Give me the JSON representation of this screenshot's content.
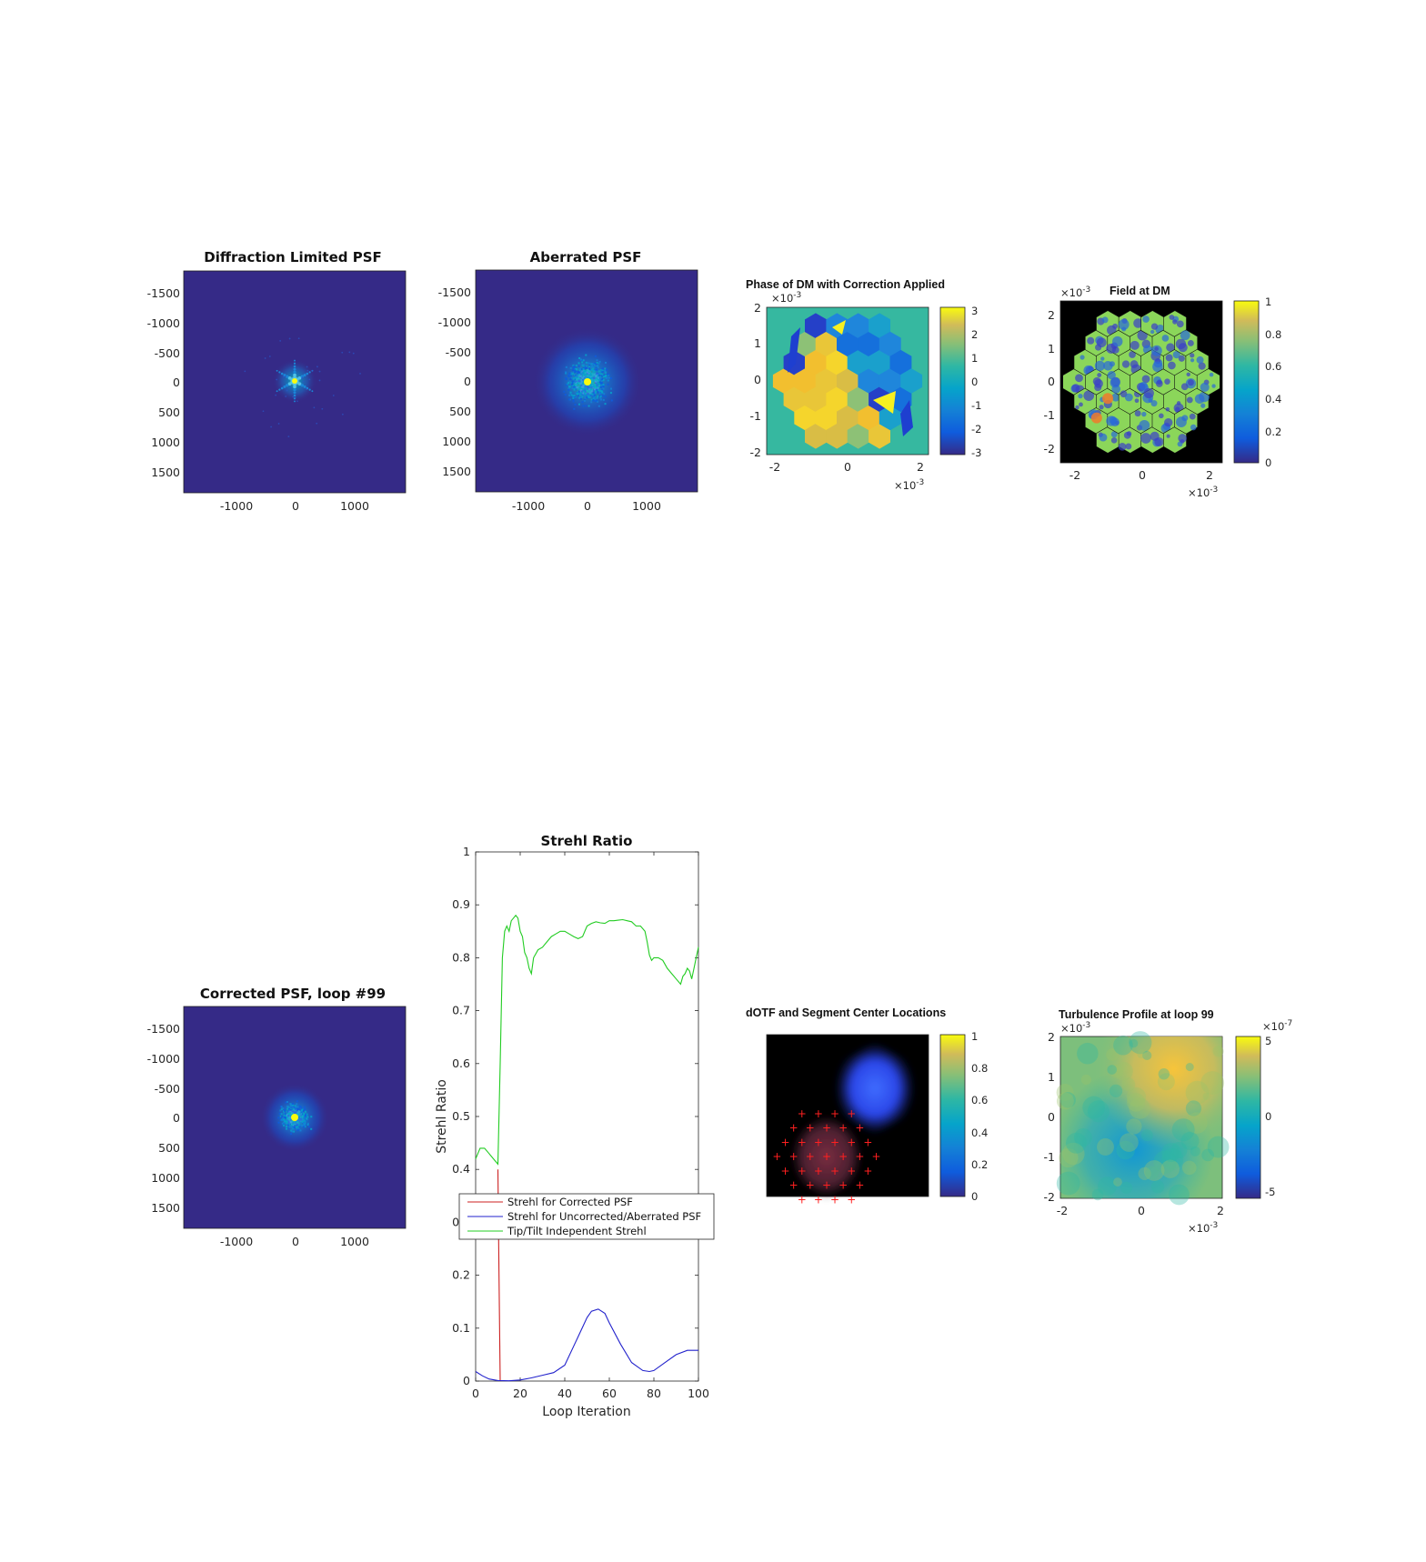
{
  "figure": {
    "background": "#ffffff"
  },
  "chart_data": [
    {
      "type": "heatmap",
      "id": "diffraction",
      "title": "Diffraction Limited PSF",
      "xticks": [
        "-1000",
        "0",
        "1000"
      ],
      "yticks": [
        "-1500",
        "-1000",
        "-500",
        "0",
        "500",
        "1000",
        "1500"
      ],
      "background_color": "#352a87",
      "peak_color": "#f9fb0e",
      "pattern": "hexagonal-star"
    },
    {
      "type": "heatmap",
      "id": "aberrated",
      "title": "Aberrated PSF",
      "xticks": [
        "-1000",
        "0",
        "1000"
      ],
      "yticks": [
        "-1500",
        "-1000",
        "-500",
        "0",
        "500",
        "1000",
        "1500"
      ],
      "background_color": "#352a87",
      "pattern": "speckle-wide"
    },
    {
      "type": "heatmap",
      "id": "phase",
      "title": "Phase of DM with Correction Applied",
      "xticks": [
        "-2",
        "0",
        "2"
      ],
      "yticks": [
        "2",
        "1",
        "0",
        "-1",
        "-2"
      ],
      "x_exponent": "-3",
      "y_exponent": "-3",
      "colorbar_ticks": [
        "3",
        "2",
        "1",
        "0",
        "-1",
        "-2",
        "-3"
      ],
      "colorbar_range": [
        -3,
        3
      ]
    },
    {
      "type": "heatmap",
      "id": "field",
      "title": "Field at DM",
      "xticks": [
        "-2",
        "0",
        "2"
      ],
      "yticks": [
        "2",
        "1",
        "0",
        "-1",
        "-2"
      ],
      "x_exponent": "-3",
      "y_exponent": "-3",
      "colorbar_ticks": [
        "1",
        "0.8",
        "0.6",
        "0.4",
        "0.2",
        "0"
      ],
      "colorbar_range": [
        0,
        1
      ]
    },
    {
      "type": "heatmap",
      "id": "corrected",
      "title": "Corrected PSF, loop #99",
      "xticks": [
        "-1000",
        "0",
        "1000"
      ],
      "yticks": [
        "-1500",
        "-1000",
        "-500",
        "0",
        "500",
        "1000",
        "1500"
      ],
      "background_color": "#352a87",
      "pattern": "speckle-compact"
    },
    {
      "type": "line",
      "id": "strehl",
      "title": "Strehl Ratio",
      "xlabel": "Loop Iteration",
      "ylabel": "Strehl Ratio",
      "xlim": [
        0,
        100
      ],
      "ylim": [
        0,
        1
      ],
      "xticks": [
        "0",
        "20",
        "40",
        "60",
        "80",
        "100"
      ],
      "yticks": [
        "0",
        "0.1",
        "0.2",
        "0.3",
        "0.4",
        "0.5",
        "0.6",
        "0.7",
        "0.8",
        "0.9",
        "1"
      ],
      "legend_position": "center-left",
      "series": [
        {
          "name": "Strehl for Corrected PSF",
          "color": "#cc2222",
          "x": [
            10,
            10.5,
            11
          ],
          "y": [
            0.4,
            0.2,
            0.0
          ]
        },
        {
          "name": "Strehl for Uncorrected/Aberrated PSF",
          "color": "#2222cc",
          "x": [
            0,
            3,
            6,
            10,
            15,
            20,
            25,
            30,
            35,
            40,
            45,
            50,
            52,
            55,
            58,
            60,
            65,
            70,
            75,
            78,
            80,
            85,
            90,
            95,
            100
          ],
          "y": [
            0.018,
            0.01,
            0.004,
            0.001,
            0.0005,
            0.002,
            0.006,
            0.011,
            0.016,
            0.03,
            0.075,
            0.12,
            0.132,
            0.136,
            0.128,
            0.11,
            0.07,
            0.035,
            0.02,
            0.018,
            0.02,
            0.035,
            0.05,
            0.058,
            0.058
          ]
        },
        {
          "name": "Tip/Tilt Independent Strehl",
          "color": "#22cc22",
          "x": [
            0,
            2,
            4,
            6,
            8,
            10,
            11,
            12,
            13,
            14,
            15,
            16,
            17,
            18,
            19,
            20,
            21,
            22,
            23,
            24,
            25,
            26,
            28,
            30,
            32,
            34,
            36,
            38,
            40,
            42,
            44,
            46,
            48,
            50,
            52,
            54,
            56,
            58,
            60,
            62,
            64,
            66,
            68,
            70,
            72,
            74,
            76,
            77,
            78,
            79,
            80,
            81,
            82,
            84,
            86,
            88,
            90,
            92,
            93,
            94,
            95,
            96,
            97,
            98,
            99,
            100
          ],
          "y": [
            0.42,
            0.44,
            0.44,
            0.43,
            0.42,
            0.41,
            0.6,
            0.8,
            0.85,
            0.86,
            0.85,
            0.87,
            0.875,
            0.88,
            0.875,
            0.85,
            0.84,
            0.81,
            0.8,
            0.78,
            0.77,
            0.8,
            0.815,
            0.82,
            0.83,
            0.84,
            0.845,
            0.85,
            0.85,
            0.845,
            0.84,
            0.836,
            0.84,
            0.86,
            0.865,
            0.868,
            0.866,
            0.865,
            0.87,
            0.87,
            0.871,
            0.872,
            0.87,
            0.868,
            0.86,
            0.86,
            0.85,
            0.83,
            0.805,
            0.795,
            0.8,
            0.8,
            0.8,
            0.795,
            0.78,
            0.77,
            0.76,
            0.75,
            0.765,
            0.77,
            0.78,
            0.775,
            0.76,
            0.78,
            0.8,
            0.82
          ]
        }
      ]
    },
    {
      "type": "heatmap",
      "id": "dotf",
      "title": "dOTF and Segment Center Locations",
      "colorbar_ticks": [
        "1",
        "0.8",
        "0.6",
        "0.4",
        "0.2",
        "0"
      ],
      "colorbar_range": [
        0,
        1
      ],
      "marker_color": "#ff2020"
    },
    {
      "type": "heatmap",
      "id": "turbulence",
      "title": "Turbulence Profile at loop 99",
      "xticks": [
        "-2",
        "0",
        "2"
      ],
      "yticks": [
        "2",
        "1",
        "0",
        "-1",
        "-2"
      ],
      "x_exponent": "-3",
      "y_exponent": "-3",
      "colorbar_ticks": [
        "5",
        "0",
        "-5"
      ],
      "colorbar_exponent": "-7",
      "colorbar_range": [
        -5,
        5
      ]
    }
  ]
}
